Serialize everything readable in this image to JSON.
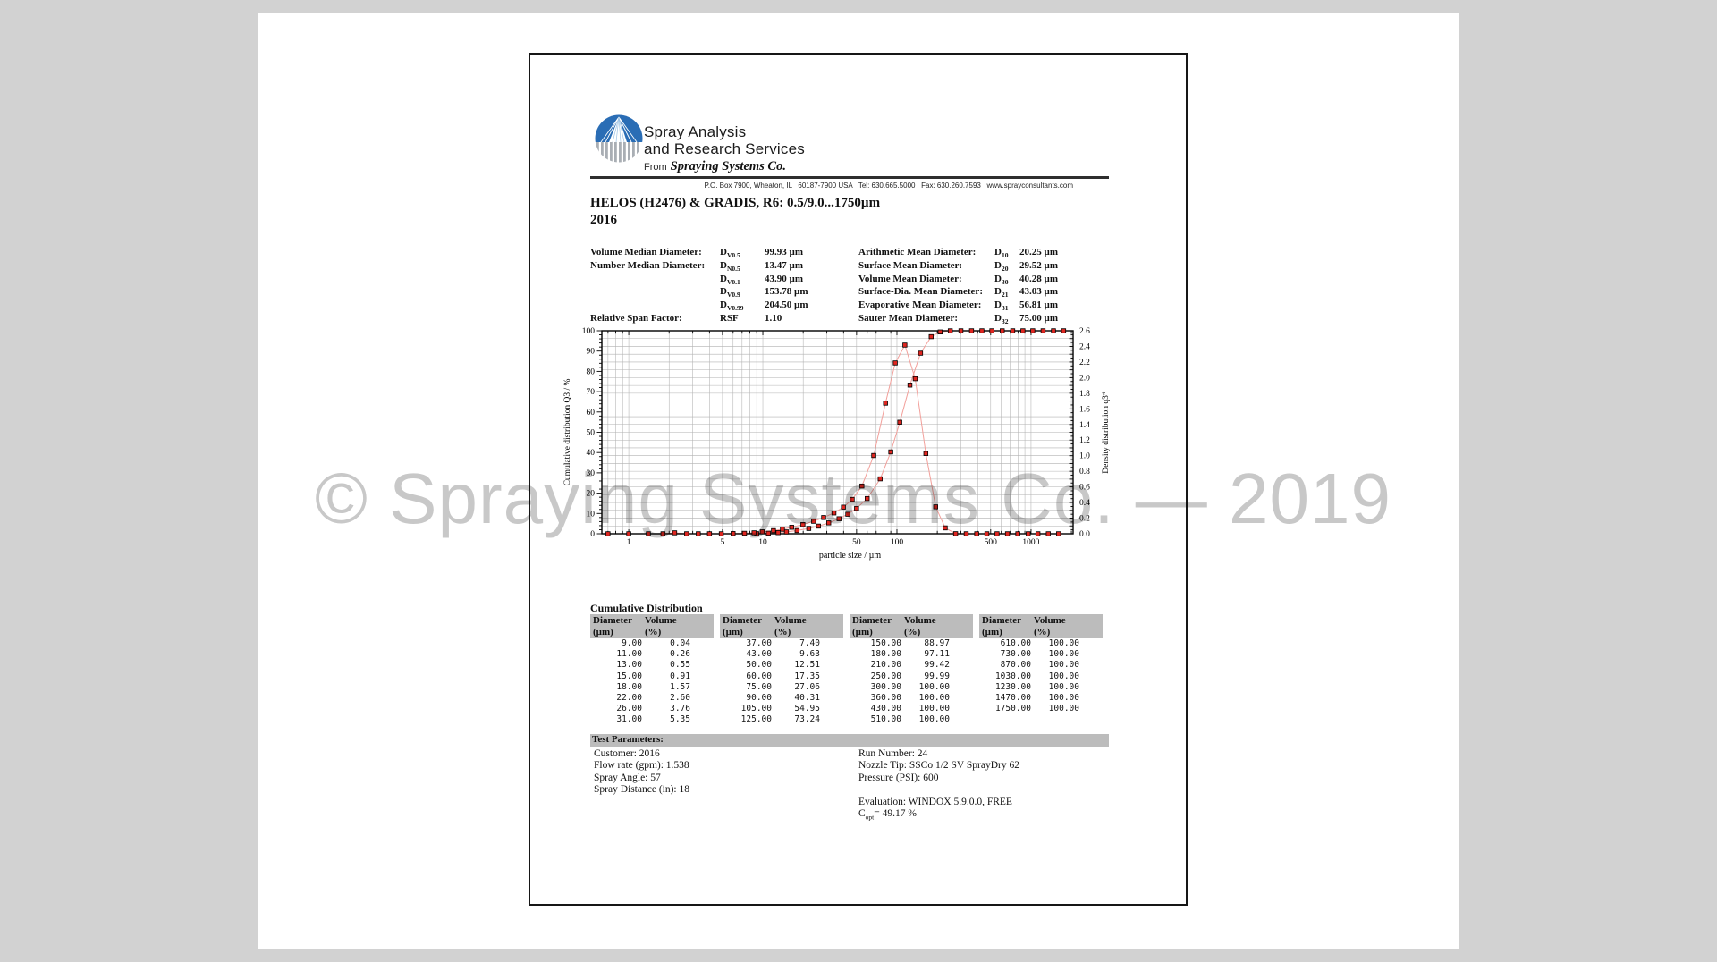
{
  "watermark": {
    "text": "© Spraying Systems Co. — 2019",
    "color": "#c8c8c8"
  },
  "header": {
    "logo": {
      "line1": "Spray Analysis",
      "line2": "and Research Services",
      "from_prefix": "From",
      "company": "Spraying Systems Co."
    },
    "address": "P.O. Box 7900, Wheaton, IL   60187-7900 USA   Tel: 630.665.5000   Fax: 630.260.7593   www.sprayconsultants.com",
    "title_line1": "HELOS (H2476) & GRADIS, R6: 0.5/9.0...1750µm",
    "title_line2": "2016"
  },
  "parameters": {
    "left": [
      {
        "label": "Volume Median Diameter:",
        "sym": "D",
        "sub": "V0.5",
        "value": "99.93 µm"
      },
      {
        "label": "Number Median Diameter:",
        "sym": "D",
        "sub": "N0.5",
        "value": "13.47 µm"
      },
      {
        "label": "",
        "sym": "D",
        "sub": "V0.1",
        "value": "43.90 µm"
      },
      {
        "label": "",
        "sym": "D",
        "sub": "V0.9",
        "value": "153.78 µm"
      },
      {
        "label": "",
        "sym": "D",
        "sub": "V0.99",
        "value": "204.50 µm"
      },
      {
        "label": "Relative Span Factor:",
        "sym": "RSF",
        "sub": "",
        "value": "1.10"
      }
    ],
    "right": [
      {
        "label": "Arithmetic Mean Diameter:",
        "sym": "D",
        "sub": "10",
        "value": "20.25 µm"
      },
      {
        "label": "Surface Mean Diameter:",
        "sym": "D",
        "sub": "20",
        "value": "29.52 µm"
      },
      {
        "label": "Volume Mean Diameter:",
        "sym": "D",
        "sub": "30",
        "value": "40.28 µm"
      },
      {
        "label": "Surface-Dia. Mean Diameter:",
        "sym": "D",
        "sub": "21",
        "value": "43.03 µm"
      },
      {
        "label": "Evaporative Mean Diameter:",
        "sym": "D",
        "sub": "31",
        "value": "56.81 µm"
      },
      {
        "label": "Sauter Mean Diameter:",
        "sym": "D",
        "sub": "32",
        "value": "75.00 µm"
      }
    ]
  },
  "chart_data": {
    "type": "line",
    "title": "",
    "xlabel": "particle size / µm",
    "ylabel_left": "Cumulative distribution Q3 / %",
    "ylabel_right": "Density distribution q3*",
    "x_scale": "log",
    "x_range": [
      0.63,
      2060
    ],
    "x_tick_labels": [
      1,
      5,
      10,
      50,
      100,
      500,
      1000
    ],
    "y_left_range": [
      0,
      100
    ],
    "y_left_tick_step": 10,
    "y_right_range": [
      0,
      2.6
    ],
    "y_right_tick_step": 0.2,
    "grid": true,
    "line_color": "#f2a09b",
    "marker_color": "#e02620",
    "series": [
      {
        "name": "Cumulative distribution Q3",
        "axis": "left",
        "x": [
          9,
          11,
          13,
          15,
          18,
          22,
          26,
          31,
          37,
          43,
          50,
          60,
          75,
          90,
          105,
          125,
          150,
          180,
          210,
          250,
          300,
          360,
          430,
          510,
          610,
          730,
          870,
          1030,
          1230,
          1470,
          1750
        ],
        "y": [
          0.04,
          0.26,
          0.55,
          0.91,
          1.57,
          2.6,
          3.76,
          5.35,
          7.4,
          9.63,
          12.51,
          17.35,
          27.06,
          40.31,
          54.95,
          73.24,
          88.97,
          97.11,
          99.42,
          99.99,
          100,
          100,
          100,
          100,
          100,
          100,
          100,
          100,
          100,
          100,
          100
        ]
      },
      {
        "name": "Density distribution q3*",
        "axis": "right",
        "x": [
          0.7,
          1.0,
          1.4,
          1.8,
          2.2,
          2.7,
          3.3,
          4.0,
          4.9,
          6.0,
          7.3,
          8.6,
          9.9,
          12.0,
          14.0,
          16.4,
          19.9,
          23.9,
          28.4,
          33.9,
          39.9,
          46.4,
          54.8,
          67.1,
          82.2,
          97.2,
          114.6,
          136.9,
          164.3,
          194.4,
          229.1,
          273.9,
          328.6,
          393.4,
          468.4,
          557.7,
          667.2,
          796.9,
          952.6,
          1125.8,
          1345.0,
          1604.2
        ],
        "y": [
          0,
          0,
          0,
          0,
          0.012,
          0,
          0,
          0,
          0,
          0.003,
          0.006,
          0.012,
          0.025,
          0.04,
          0.058,
          0.083,
          0.118,
          0.16,
          0.208,
          0.267,
          0.341,
          0.44,
          0.611,
          1.002,
          1.673,
          2.188,
          2.417,
          1.986,
          1.028,
          0.345,
          0.075,
          0.001,
          0,
          0,
          0,
          0,
          0,
          0,
          0,
          0,
          0,
          0
        ]
      }
    ]
  },
  "cumulative_table": {
    "title": "Cumulative Distribution",
    "header": {
      "c1l1": "Diameter",
      "c1l2": "(µm)",
      "c2l1": "Volume",
      "c2l2": "(%)"
    },
    "columns": [
      [
        [
          "9.00",
          "0.04"
        ],
        [
          "11.00",
          "0.26"
        ],
        [
          "13.00",
          "0.55"
        ],
        [
          "15.00",
          "0.91"
        ],
        [
          "18.00",
          "1.57"
        ],
        [
          "22.00",
          "2.60"
        ],
        [
          "26.00",
          "3.76"
        ],
        [
          "31.00",
          "5.35"
        ]
      ],
      [
        [
          "37.00",
          "7.40"
        ],
        [
          "43.00",
          "9.63"
        ],
        [
          "50.00",
          "12.51"
        ],
        [
          "60.00",
          "17.35"
        ],
        [
          "75.00",
          "27.06"
        ],
        [
          "90.00",
          "40.31"
        ],
        [
          "105.00",
          "54.95"
        ],
        [
          "125.00",
          "73.24"
        ]
      ],
      [
        [
          "150.00",
          "88.97"
        ],
        [
          "180.00",
          "97.11"
        ],
        [
          "210.00",
          "99.42"
        ],
        [
          "250.00",
          "99.99"
        ],
        [
          "300.00",
          "100.00"
        ],
        [
          "360.00",
          "100.00"
        ],
        [
          "430.00",
          "100.00"
        ],
        [
          "510.00",
          "100.00"
        ]
      ],
      [
        [
          "610.00",
          "100.00"
        ],
        [
          "730.00",
          "100.00"
        ],
        [
          "870.00",
          "100.00"
        ],
        [
          "1030.00",
          "100.00"
        ],
        [
          "1230.00",
          "100.00"
        ],
        [
          "1470.00",
          "100.00"
        ],
        [
          "1750.00",
          "100.00"
        ]
      ]
    ]
  },
  "test_parameters": {
    "title": "Test Parameters:",
    "left_lines": [
      "Customer: 2016",
      "Flow rate (gpm): 1.538",
      "Spray Angle: 57",
      "Spray Distance (in): 18"
    ],
    "right_lines": [
      "Run Number: 24",
      "Nozzle Tip: SSCo 1/2 SV SprayDry 62",
      "Pressure (PSI): 600",
      "",
      "Evaluation: WINDOX 5.9.0.0, FREE"
    ],
    "copt": {
      "base": "C",
      "sub": "opt",
      "rest": "= 49.17 %"
    }
  }
}
